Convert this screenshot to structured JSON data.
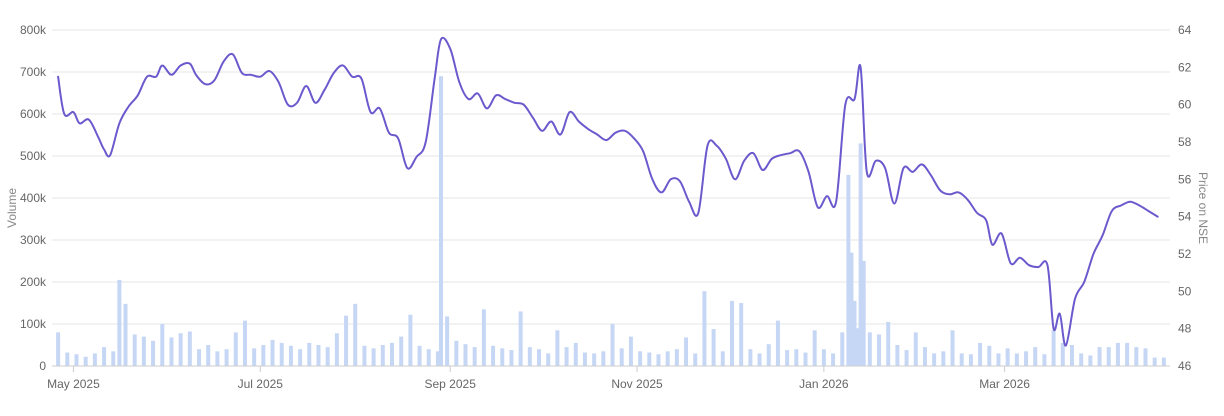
{
  "chart_data": {
    "type": "bar+line",
    "title": "",
    "xlabel": "",
    "y_left_label": "Volume",
    "y_right_label": "Price on NSE",
    "y_left_ticks": [
      "0",
      "100k",
      "200k",
      "300k",
      "400k",
      "500k",
      "600k",
      "700k",
      "800k"
    ],
    "y_left_range": [
      0,
      800000
    ],
    "y_right_ticks": [
      "46",
      "48",
      "50",
      "52",
      "54",
      "56",
      "58",
      "60",
      "62",
      "64"
    ],
    "y_right_range": [
      46,
      64
    ],
    "x_range": [
      "2025-04-24",
      "2026-04-24"
    ],
    "x_ticks": [
      {
        "date": "2025-05-01",
        "label": "May 2025"
      },
      {
        "date": "2025-07-01",
        "label": "Jul 2025"
      },
      {
        "date": "2025-09-01",
        "label": "Sep 2025"
      },
      {
        "date": "2025-11-01",
        "label": "Nov 2025"
      },
      {
        "date": "2026-01-01",
        "label": "Jan 2026"
      },
      {
        "date": "2026-03-01",
        "label": "Mar 2026"
      }
    ],
    "grid": true,
    "colors": {
      "volume": "#c6d7f5",
      "price": "#6a5acd",
      "grid": "#e6e6e6",
      "axis_text": "#666666",
      "axis_title": "#888888"
    },
    "price_series": [
      [
        "2025-04-26",
        61.5
      ],
      [
        "2025-04-28",
        59.5
      ],
      [
        "2025-05-01",
        59.6
      ],
      [
        "2025-05-03",
        59
      ],
      [
        "2025-05-06",
        59.2
      ],
      [
        "2025-05-09",
        58.3
      ],
      [
        "2025-05-11",
        57.6
      ],
      [
        "2025-05-13",
        57.3
      ],
      [
        "2025-05-16",
        59
      ],
      [
        "2025-05-19",
        59.9
      ],
      [
        "2025-05-22",
        60.5
      ],
      [
        "2025-05-25",
        61.5
      ],
      [
        "2025-05-28",
        61.5
      ],
      [
        "2025-05-30",
        62.1
      ],
      [
        "2025-06-02",
        61.6
      ],
      [
        "2025-06-05",
        62.1
      ],
      [
        "2025-06-08",
        62.2
      ],
      [
        "2025-06-10",
        61.6
      ],
      [
        "2025-06-13",
        61.1
      ],
      [
        "2025-06-16",
        61.3
      ],
      [
        "2025-06-19",
        62.3
      ],
      [
        "2025-06-22",
        62.7
      ],
      [
        "2025-06-25",
        61.7
      ],
      [
        "2025-06-28",
        61.6
      ],
      [
        "2025-07-01",
        61.5
      ],
      [
        "2025-07-04",
        61.8
      ],
      [
        "2025-07-07",
        61.2
      ],
      [
        "2025-07-10",
        60
      ],
      [
        "2025-07-13",
        60.1
      ],
      [
        "2025-07-16",
        61
      ],
      [
        "2025-07-19",
        60.1
      ],
      [
        "2025-07-22",
        60.8
      ],
      [
        "2025-07-25",
        61.7
      ],
      [
        "2025-07-28",
        62.1
      ],
      [
        "2025-07-31",
        61.5
      ],
      [
        "2025-08-03",
        61.4
      ],
      [
        "2025-08-06",
        59.6
      ],
      [
        "2025-08-09",
        59.8
      ],
      [
        "2025-08-12",
        58.5
      ],
      [
        "2025-08-15",
        58.2
      ],
      [
        "2025-08-18",
        56.6
      ],
      [
        "2025-08-21",
        57.2
      ],
      [
        "2025-08-24",
        58
      ],
      [
        "2025-08-27",
        61.5
      ],
      [
        "2025-08-29",
        63.5
      ],
      [
        "2025-09-01",
        63
      ],
      [
        "2025-09-04",
        61.2
      ],
      [
        "2025-09-07",
        60.3
      ],
      [
        "2025-09-10",
        60.6
      ],
      [
        "2025-09-13",
        59.8
      ],
      [
        "2025-09-16",
        60.5
      ],
      [
        "2025-09-19",
        60.3
      ],
      [
        "2025-09-22",
        60.1
      ],
      [
        "2025-09-25",
        60
      ],
      [
        "2025-09-28",
        59.3
      ],
      [
        "2025-10-01",
        58.6
      ],
      [
        "2025-10-04",
        59.1
      ],
      [
        "2025-10-07",
        58.4
      ],
      [
        "2025-10-10",
        59.6
      ],
      [
        "2025-10-13",
        59.1
      ],
      [
        "2025-10-16",
        58.7
      ],
      [
        "2025-10-19",
        58.4
      ],
      [
        "2025-10-22",
        58.1
      ],
      [
        "2025-10-25",
        58.5
      ],
      [
        "2025-10-28",
        58.6
      ],
      [
        "2025-10-31",
        58.2
      ],
      [
        "2025-11-03",
        57.5
      ],
      [
        "2025-11-06",
        56
      ],
      [
        "2025-11-09",
        55.3
      ],
      [
        "2025-11-12",
        56
      ],
      [
        "2025-11-15",
        55.9
      ],
      [
        "2025-11-18",
        54.8
      ],
      [
        "2025-11-21",
        54.2
      ],
      [
        "2025-11-24",
        57.8
      ],
      [
        "2025-11-27",
        57.8
      ],
      [
        "2025-11-30",
        57.1
      ],
      [
        "2025-12-03",
        56
      ],
      [
        "2025-12-06",
        57
      ],
      [
        "2025-12-09",
        57.4
      ],
      [
        "2025-12-12",
        56.5
      ],
      [
        "2025-12-15",
        57.1
      ],
      [
        "2025-12-18",
        57.3
      ],
      [
        "2025-12-21",
        57.4
      ],
      [
        "2025-12-24",
        57.5
      ],
      [
        "2025-12-27",
        56.4
      ],
      [
        "2025-12-30",
        54.5
      ],
      [
        "2026-01-02",
        55.1
      ],
      [
        "2026-01-05",
        54.8
      ],
      [
        "2026-01-08",
        60
      ],
      [
        "2026-01-11",
        60.3
      ],
      [
        "2026-01-13",
        62
      ],
      [
        "2026-01-15",
        56.4
      ],
      [
        "2026-01-18",
        57
      ],
      [
        "2026-01-21",
        56.6
      ],
      [
        "2026-01-24",
        54.7
      ],
      [
        "2026-01-27",
        56.6
      ],
      [
        "2026-01-30",
        56.4
      ],
      [
        "2026-02-02",
        56.8
      ],
      [
        "2026-02-05",
        56.2
      ],
      [
        "2026-02-08",
        55.4
      ],
      [
        "2026-02-11",
        55.2
      ],
      [
        "2026-02-14",
        55.3
      ],
      [
        "2026-02-17",
        54.9
      ],
      [
        "2026-02-20",
        54.2
      ],
      [
        "2026-02-23",
        53.8
      ],
      [
        "2026-02-25",
        52.5
      ],
      [
        "2026-02-28",
        53.1
      ],
      [
        "2026-03-03",
        51.5
      ],
      [
        "2026-03-06",
        51.8
      ],
      [
        "2026-03-09",
        51.4
      ],
      [
        "2026-03-12",
        51.3
      ],
      [
        "2026-03-15",
        51.4
      ],
      [
        "2026-03-17",
        48
      ],
      [
        "2026-03-19",
        48.8
      ],
      [
        "2026-03-21",
        47.1
      ],
      [
        "2026-03-24",
        49.6
      ],
      [
        "2026-03-27",
        50.5
      ],
      [
        "2026-03-30",
        52
      ],
      [
        "2026-04-02",
        53
      ],
      [
        "2026-04-05",
        54.3
      ],
      [
        "2026-04-08",
        54.6
      ],
      [
        "2026-04-11",
        54.8
      ],
      [
        "2026-04-14",
        54.6
      ],
      [
        "2026-04-17",
        54.3
      ],
      [
        "2026-04-20",
        54
      ]
    ],
    "volume_series": [
      [
        "2025-04-26",
        80000
      ],
      [
        "2025-04-29",
        32000
      ],
      [
        "2025-05-02",
        28000
      ],
      [
        "2025-05-05",
        22000
      ],
      [
        "2025-05-08",
        30000
      ],
      [
        "2025-05-11",
        45000
      ],
      [
        "2025-05-14",
        35000
      ],
      [
        "2025-05-16",
        205000
      ],
      [
        "2025-05-18",
        148000
      ],
      [
        "2025-05-21",
        75000
      ],
      [
        "2025-05-24",
        70000
      ],
      [
        "2025-05-27",
        60000
      ],
      [
        "2025-05-30",
        100000
      ],
      [
        "2025-06-02",
        68000
      ],
      [
        "2025-06-05",
        78000
      ],
      [
        "2025-06-08",
        82000
      ],
      [
        "2025-06-11",
        40000
      ],
      [
        "2025-06-14",
        50000
      ],
      [
        "2025-06-17",
        35000
      ],
      [
        "2025-06-20",
        40000
      ],
      [
        "2025-06-23",
        80000
      ],
      [
        "2025-06-26",
        108000
      ],
      [
        "2025-06-29",
        42000
      ],
      [
        "2025-07-02",
        50000
      ],
      [
        "2025-07-05",
        62000
      ],
      [
        "2025-07-08",
        55000
      ],
      [
        "2025-07-11",
        48000
      ],
      [
        "2025-07-14",
        40000
      ],
      [
        "2025-07-17",
        55000
      ],
      [
        "2025-07-20",
        50000
      ],
      [
        "2025-07-23",
        45000
      ],
      [
        "2025-07-26",
        78000
      ],
      [
        "2025-07-29",
        120000
      ],
      [
        "2025-08-01",
        148000
      ],
      [
        "2025-08-04",
        48000
      ],
      [
        "2025-08-07",
        42000
      ],
      [
        "2025-08-10",
        50000
      ],
      [
        "2025-08-13",
        55000
      ],
      [
        "2025-08-16",
        70000
      ],
      [
        "2025-08-19",
        122000
      ],
      [
        "2025-08-22",
        48000
      ],
      [
        "2025-08-25",
        40000
      ],
      [
        "2025-08-28",
        35000
      ],
      [
        "2025-08-29",
        690000
      ],
      [
        "2025-08-31",
        118000
      ],
      [
        "2025-09-03",
        60000
      ],
      [
        "2025-09-06",
        52000
      ],
      [
        "2025-09-09",
        45000
      ],
      [
        "2025-09-12",
        135000
      ],
      [
        "2025-09-15",
        48000
      ],
      [
        "2025-09-18",
        42000
      ],
      [
        "2025-09-21",
        38000
      ],
      [
        "2025-09-24",
        130000
      ],
      [
        "2025-09-27",
        45000
      ],
      [
        "2025-09-30",
        40000
      ],
      [
        "2025-10-03",
        30000
      ],
      [
        "2025-10-06",
        85000
      ],
      [
        "2025-10-09",
        45000
      ],
      [
        "2025-10-12",
        55000
      ],
      [
        "2025-10-15",
        32000
      ],
      [
        "2025-10-18",
        30000
      ],
      [
        "2025-10-21",
        35000
      ],
      [
        "2025-10-24",
        100000
      ],
      [
        "2025-10-27",
        42000
      ],
      [
        "2025-10-30",
        70000
      ],
      [
        "2025-11-02",
        35000
      ],
      [
        "2025-11-05",
        32000
      ],
      [
        "2025-11-08",
        28000
      ],
      [
        "2025-11-11",
        35000
      ],
      [
        "2025-11-14",
        40000
      ],
      [
        "2025-11-17",
        68000
      ],
      [
        "2025-11-20",
        30000
      ],
      [
        "2025-11-23",
        178000
      ],
      [
        "2025-11-26",
        88000
      ],
      [
        "2025-11-29",
        35000
      ],
      [
        "2025-12-02",
        155000
      ],
      [
        "2025-12-05",
        150000
      ],
      [
        "2025-12-08",
        40000
      ],
      [
        "2025-12-11",
        30000
      ],
      [
        "2025-12-14",
        52000
      ],
      [
        "2025-12-17",
        108000
      ],
      [
        "2025-12-20",
        38000
      ],
      [
        "2025-12-23",
        40000
      ],
      [
        "2025-12-26",
        32000
      ],
      [
        "2025-12-29",
        85000
      ],
      [
        "2026-01-01",
        40000
      ],
      [
        "2026-01-04",
        30000
      ],
      [
        "2026-01-07",
        80000
      ],
      [
        "2026-01-09",
        455000
      ],
      [
        "2026-01-10",
        270000
      ],
      [
        "2026-01-11",
        155000
      ],
      [
        "2026-01-12",
        90000
      ],
      [
        "2026-01-13",
        530000
      ],
      [
        "2026-01-14",
        250000
      ],
      [
        "2026-01-16",
        80000
      ],
      [
        "2026-01-19",
        75000
      ],
      [
        "2026-01-22",
        105000
      ],
      [
        "2026-01-25",
        50000
      ],
      [
        "2026-01-28",
        38000
      ],
      [
        "2026-01-31",
        80000
      ],
      [
        "2026-02-03",
        45000
      ],
      [
        "2026-02-06",
        30000
      ],
      [
        "2026-02-09",
        35000
      ],
      [
        "2026-02-12",
        85000
      ],
      [
        "2026-02-15",
        30000
      ],
      [
        "2026-02-18",
        28000
      ],
      [
        "2026-02-21",
        55000
      ],
      [
        "2026-02-24",
        48000
      ],
      [
        "2026-02-27",
        30000
      ],
      [
        "2026-03-02",
        42000
      ],
      [
        "2026-03-05",
        30000
      ],
      [
        "2026-03-08",
        35000
      ],
      [
        "2026-03-11",
        45000
      ],
      [
        "2026-03-14",
        28000
      ],
      [
        "2026-03-17",
        85000
      ],
      [
        "2026-03-20",
        55000
      ],
      [
        "2026-03-23",
        50000
      ],
      [
        "2026-03-26",
        30000
      ],
      [
        "2026-03-29",
        25000
      ],
      [
        "2026-04-01",
        45000
      ],
      [
        "2026-04-04",
        45000
      ],
      [
        "2026-04-07",
        55000
      ],
      [
        "2026-04-10",
        55000
      ],
      [
        "2026-04-13",
        45000
      ],
      [
        "2026-04-16",
        42000
      ],
      [
        "2026-04-19",
        20000
      ],
      [
        "2026-04-22",
        20000
      ]
    ]
  }
}
